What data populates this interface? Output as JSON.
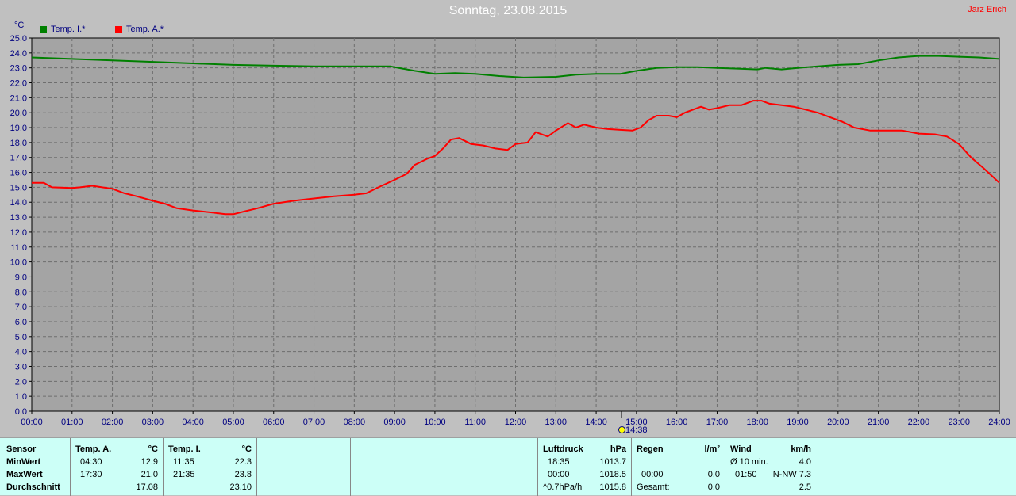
{
  "header": {
    "title": "Sonntag, 23.08.2015",
    "author": "Jarz Erich",
    "unit": "°C"
  },
  "legend": [
    {
      "label": "Temp. I.*",
      "color": "#008000"
    },
    {
      "label": "Temp. A.*",
      "color": "#ff0000"
    }
  ],
  "now_marker": {
    "time": "14:38"
  },
  "chart_data": {
    "type": "line",
    "xlabel": "",
    "ylabel": "°C",
    "xlim": [
      0,
      24
    ],
    "ylim": [
      0,
      25
    ],
    "x_ticks": [
      "00:00",
      "01:00",
      "02:00",
      "03:00",
      "04:00",
      "05:00",
      "06:00",
      "07:00",
      "08:00",
      "09:00",
      "10:00",
      "11:00",
      "12:00",
      "13:00",
      "14:00",
      "15:00",
      "16:00",
      "17:00",
      "18:00",
      "19:00",
      "20:00",
      "21:00",
      "22:00",
      "23:00",
      "24:00"
    ],
    "y_ticks": [
      "0.0",
      "1.0",
      "2.0",
      "3.0",
      "4.0",
      "5.0",
      "6.0",
      "7.0",
      "8.0",
      "9.0",
      "10.0",
      "11.0",
      "12.0",
      "13.0",
      "14.0",
      "15.0",
      "16.0",
      "17.0",
      "18.0",
      "19.0",
      "20.0",
      "21.0",
      "22.0",
      "23.0",
      "24.0",
      "25.0"
    ],
    "grid": true,
    "series": [
      {
        "name": "Temp. I.*",
        "color": "#008000",
        "points": [
          [
            0,
            23.7
          ],
          [
            1,
            23.6
          ],
          [
            2,
            23.5
          ],
          [
            3,
            23.4
          ],
          [
            4,
            23.3
          ],
          [
            5,
            23.2
          ],
          [
            6,
            23.15
          ],
          [
            7,
            23.1
          ],
          [
            8,
            23.1
          ],
          [
            8.9,
            23.1
          ],
          [
            9.5,
            22.8
          ],
          [
            10,
            22.6
          ],
          [
            10.5,
            22.65
          ],
          [
            11,
            22.6
          ],
          [
            11.6,
            22.45
          ],
          [
            12.2,
            22.35
          ],
          [
            13,
            22.4
          ],
          [
            13.5,
            22.55
          ],
          [
            14,
            22.6
          ],
          [
            14.6,
            22.6
          ],
          [
            15,
            22.8
          ],
          [
            15.5,
            23.0
          ],
          [
            16,
            23.05
          ],
          [
            16.5,
            23.05
          ],
          [
            17,
            23.0
          ],
          [
            17.5,
            22.95
          ],
          [
            18,
            22.9
          ],
          [
            18.2,
            23.0
          ],
          [
            18.6,
            22.9
          ],
          [
            19,
            23.0
          ],
          [
            19.5,
            23.1
          ],
          [
            20,
            23.2
          ],
          [
            20.5,
            23.25
          ],
          [
            21,
            23.5
          ],
          [
            21.5,
            23.7
          ],
          [
            22,
            23.8
          ],
          [
            22.5,
            23.8
          ],
          [
            23,
            23.75
          ],
          [
            23.5,
            23.7
          ],
          [
            24,
            23.6
          ]
        ]
      },
      {
        "name": "Temp. A.*",
        "color": "#ff0000",
        "points": [
          [
            0,
            15.3
          ],
          [
            0.3,
            15.3
          ],
          [
            0.5,
            15.0
          ],
          [
            1,
            14.95
          ],
          [
            1.2,
            15.0
          ],
          [
            1.5,
            15.1
          ],
          [
            2,
            14.9
          ],
          [
            2.3,
            14.6
          ],
          [
            2.6,
            14.4
          ],
          [
            3,
            14.1
          ],
          [
            3.3,
            13.9
          ],
          [
            3.6,
            13.6
          ],
          [
            4,
            13.45
          ],
          [
            4.5,
            13.3
          ],
          [
            4.8,
            13.2
          ],
          [
            5,
            13.2
          ],
          [
            5.3,
            13.4
          ],
          [
            5.6,
            13.6
          ],
          [
            6,
            13.9
          ],
          [
            6.5,
            14.1
          ],
          [
            7,
            14.25
          ],
          [
            7.5,
            14.4
          ],
          [
            8,
            14.5
          ],
          [
            8.3,
            14.6
          ],
          [
            8.6,
            15.0
          ],
          [
            9,
            15.5
          ],
          [
            9.3,
            15.9
          ],
          [
            9.5,
            16.5
          ],
          [
            9.8,
            16.9
          ],
          [
            10,
            17.1
          ],
          [
            10.2,
            17.6
          ],
          [
            10.4,
            18.2
          ],
          [
            10.6,
            18.3
          ],
          [
            10.9,
            17.9
          ],
          [
            11.2,
            17.8
          ],
          [
            11.5,
            17.6
          ],
          [
            11.8,
            17.5
          ],
          [
            12,
            17.9
          ],
          [
            12.3,
            18.0
          ],
          [
            12.5,
            18.7
          ],
          [
            12.8,
            18.4
          ],
          [
            13,
            18.8
          ],
          [
            13.3,
            19.3
          ],
          [
            13.5,
            19.0
          ],
          [
            13.7,
            19.2
          ],
          [
            14,
            19.0
          ],
          [
            14.3,
            18.9
          ],
          [
            14.6,
            18.85
          ],
          [
            14.9,
            18.8
          ],
          [
            15.1,
            19.0
          ],
          [
            15.3,
            19.5
          ],
          [
            15.5,
            19.8
          ],
          [
            15.8,
            19.8
          ],
          [
            16,
            19.7
          ],
          [
            16.2,
            20.0
          ],
          [
            16.4,
            20.2
          ],
          [
            16.6,
            20.4
          ],
          [
            16.8,
            20.2
          ],
          [
            17,
            20.3
          ],
          [
            17.3,
            20.5
          ],
          [
            17.6,
            20.5
          ],
          [
            17.9,
            20.8
          ],
          [
            18.1,
            20.8
          ],
          [
            18.3,
            20.6
          ],
          [
            18.6,
            20.5
          ],
          [
            18.9,
            20.4
          ],
          [
            19.2,
            20.2
          ],
          [
            19.5,
            20.0
          ],
          [
            19.8,
            19.7
          ],
          [
            20.1,
            19.4
          ],
          [
            20.4,
            19.0
          ],
          [
            20.8,
            18.8
          ],
          [
            21.2,
            18.8
          ],
          [
            21.6,
            18.8
          ],
          [
            22,
            18.6
          ],
          [
            22.4,
            18.55
          ],
          [
            22.7,
            18.4
          ],
          [
            23,
            17.9
          ],
          [
            23.3,
            17.0
          ],
          [
            23.6,
            16.3
          ],
          [
            24,
            15.3
          ]
        ]
      }
    ]
  },
  "table": {
    "row_labels": [
      "Sensor",
      "MinWert",
      "MaxWert",
      "Durchschnitt"
    ],
    "temp_a": {
      "title": "Temp. A.",
      "unit": "°C",
      "min_time": "04:30",
      "min_val": "12.9",
      "max_time": "17:30",
      "max_val": "21.0",
      "avg": "17.08"
    },
    "temp_i": {
      "title": "Temp. I.",
      "unit": "°C",
      "min_time": "11:35",
      "min_val": "22.3",
      "max_time": "21:35",
      "max_val": "23.8",
      "avg": "23.10"
    },
    "pressure": {
      "title": "Luftdruck",
      "unit": "hPa",
      "r1_time": "18:35",
      "r1_val": "1013.7",
      "r2_time": "00:00",
      "r2_val": "1018.5",
      "r3_label": "^0.7hPa/h",
      "r3_val": "1015.8"
    },
    "rain": {
      "title": "Regen",
      "unit": "l/m²",
      "r2_time": "00:00",
      "r2_val": "0.0",
      "r3_label": "Gesamt:",
      "r3_val": "0.0"
    },
    "wind": {
      "title": "Wind",
      "unit": "km/h",
      "r1_label": "Ø 10 min.",
      "r1_val": "4.0",
      "r2_time": "01:50",
      "r2_val": "N-NW 7.3",
      "r3_val": "2.5"
    }
  }
}
